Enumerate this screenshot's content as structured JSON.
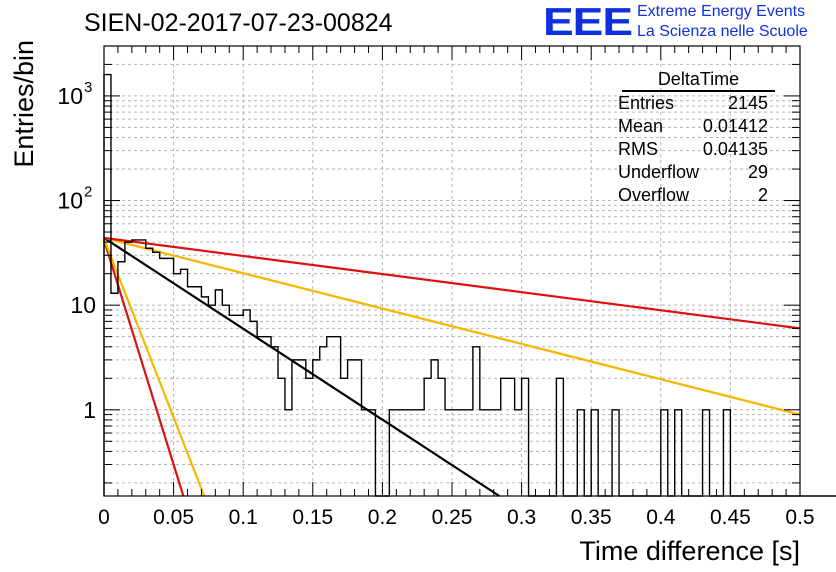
{
  "header": {
    "title": "SIEN-02-2017-07-23-00824",
    "logo": "EEE",
    "logo_line1": "Extreme Energy Events",
    "logo_line2": "La Scienza nelle Scuole"
  },
  "stats": {
    "name": "DeltaTime",
    "rows": [
      {
        "label": "Entries",
        "value": "2145"
      },
      {
        "label": "Mean",
        "value": "0.01412"
      },
      {
        "label": "RMS",
        "value": "0.04135"
      },
      {
        "label": "Underflow",
        "value": "29"
      },
      {
        "label": "Overflow",
        "value": "2"
      }
    ]
  },
  "colors": {
    "red": "#dd1111",
    "orange": "#f5b800",
    "black": "#000000",
    "grid": "#b4b4b4"
  },
  "chart_data": {
    "type": "bar",
    "xlabel": "Time difference [s]",
    "ylabel": "Entries/bin",
    "xlim": [
      0,
      0.5
    ],
    "ylim": [
      0.15,
      3000
    ],
    "yscale": "log",
    "grid": true,
    "xticks": [
      {
        "v": 0,
        "label": "0"
      },
      {
        "v": 0.05,
        "label": "0.05"
      },
      {
        "v": 0.1,
        "label": "0.1"
      },
      {
        "v": 0.15,
        "label": "0.15"
      },
      {
        "v": 0.2,
        "label": "0.2"
      },
      {
        "v": 0.25,
        "label": "0.25"
      },
      {
        "v": 0.3,
        "label": "0.3"
      },
      {
        "v": 0.35,
        "label": "0.35"
      },
      {
        "v": 0.4,
        "label": "0.4"
      },
      {
        "v": 0.45,
        "label": "0.45"
      },
      {
        "v": 0.5,
        "label": "0.5"
      }
    ],
    "yticks": [
      {
        "v": 1,
        "label": "1"
      },
      {
        "v": 10,
        "label": "10"
      },
      {
        "v": 100,
        "label": "10",
        "exp": "2"
      },
      {
        "v": 1000,
        "label": "10",
        "exp": "3"
      }
    ],
    "bin_width": 0.005,
    "histogram": [
      1600,
      13,
      26,
      40,
      42,
      42,
      35,
      32,
      28,
      28,
      20,
      22,
      15,
      15,
      12,
      10,
      14,
      10,
      8,
      8,
      9,
      7,
      5,
      5,
      4,
      2,
      1,
      3,
      3,
      2,
      3,
      4,
      5,
      5,
      2,
      3,
      3,
      1,
      1,
      0,
      0,
      1,
      1,
      1,
      1,
      1,
      2,
      3,
      2,
      1,
      1,
      1,
      1,
      4,
      1,
      1,
      1,
      2,
      2,
      1,
      2,
      0,
      0,
      0,
      0,
      2,
      0,
      0,
      1,
      0,
      1,
      0,
      0,
      1,
      0,
      0,
      0,
      0,
      0,
      0,
      1,
      0,
      1,
      0,
      0,
      0,
      1,
      0,
      0,
      1,
      0,
      0,
      0,
      0,
      0,
      0,
      0,
      0,
      0,
      0,
      0,
      0,
      0,
      0,
      0,
      0,
      0,
      0,
      0,
      0,
      0,
      0,
      0,
      0,
      0,
      0,
      0,
      0,
      0,
      0,
      0,
      0,
      0,
      0,
      0,
      0,
      0,
      0,
      0,
      0,
      0,
      0,
      0,
      0,
      0,
      0,
      0,
      0,
      0,
      0,
      0,
      0,
      0,
      0,
      0,
      0,
      0,
      0,
      0,
      0
    ],
    "fits": [
      {
        "color": "red",
        "points": [
          [
            0,
            42
          ],
          [
            0.057,
            0.15
          ]
        ]
      },
      {
        "color": "orange",
        "points": [
          [
            0,
            43
          ],
          [
            0.072,
            0.15
          ]
        ]
      },
      {
        "color": "black",
        "points": [
          [
            0,
            44
          ],
          [
            0.284,
            0.15
          ]
        ]
      },
      {
        "color": "orange",
        "points": [
          [
            0,
            44
          ],
          [
            0.5,
            0.9
          ]
        ]
      },
      {
        "color": "red",
        "points": [
          [
            0,
            44
          ],
          [
            0.5,
            6
          ]
        ]
      }
    ]
  }
}
